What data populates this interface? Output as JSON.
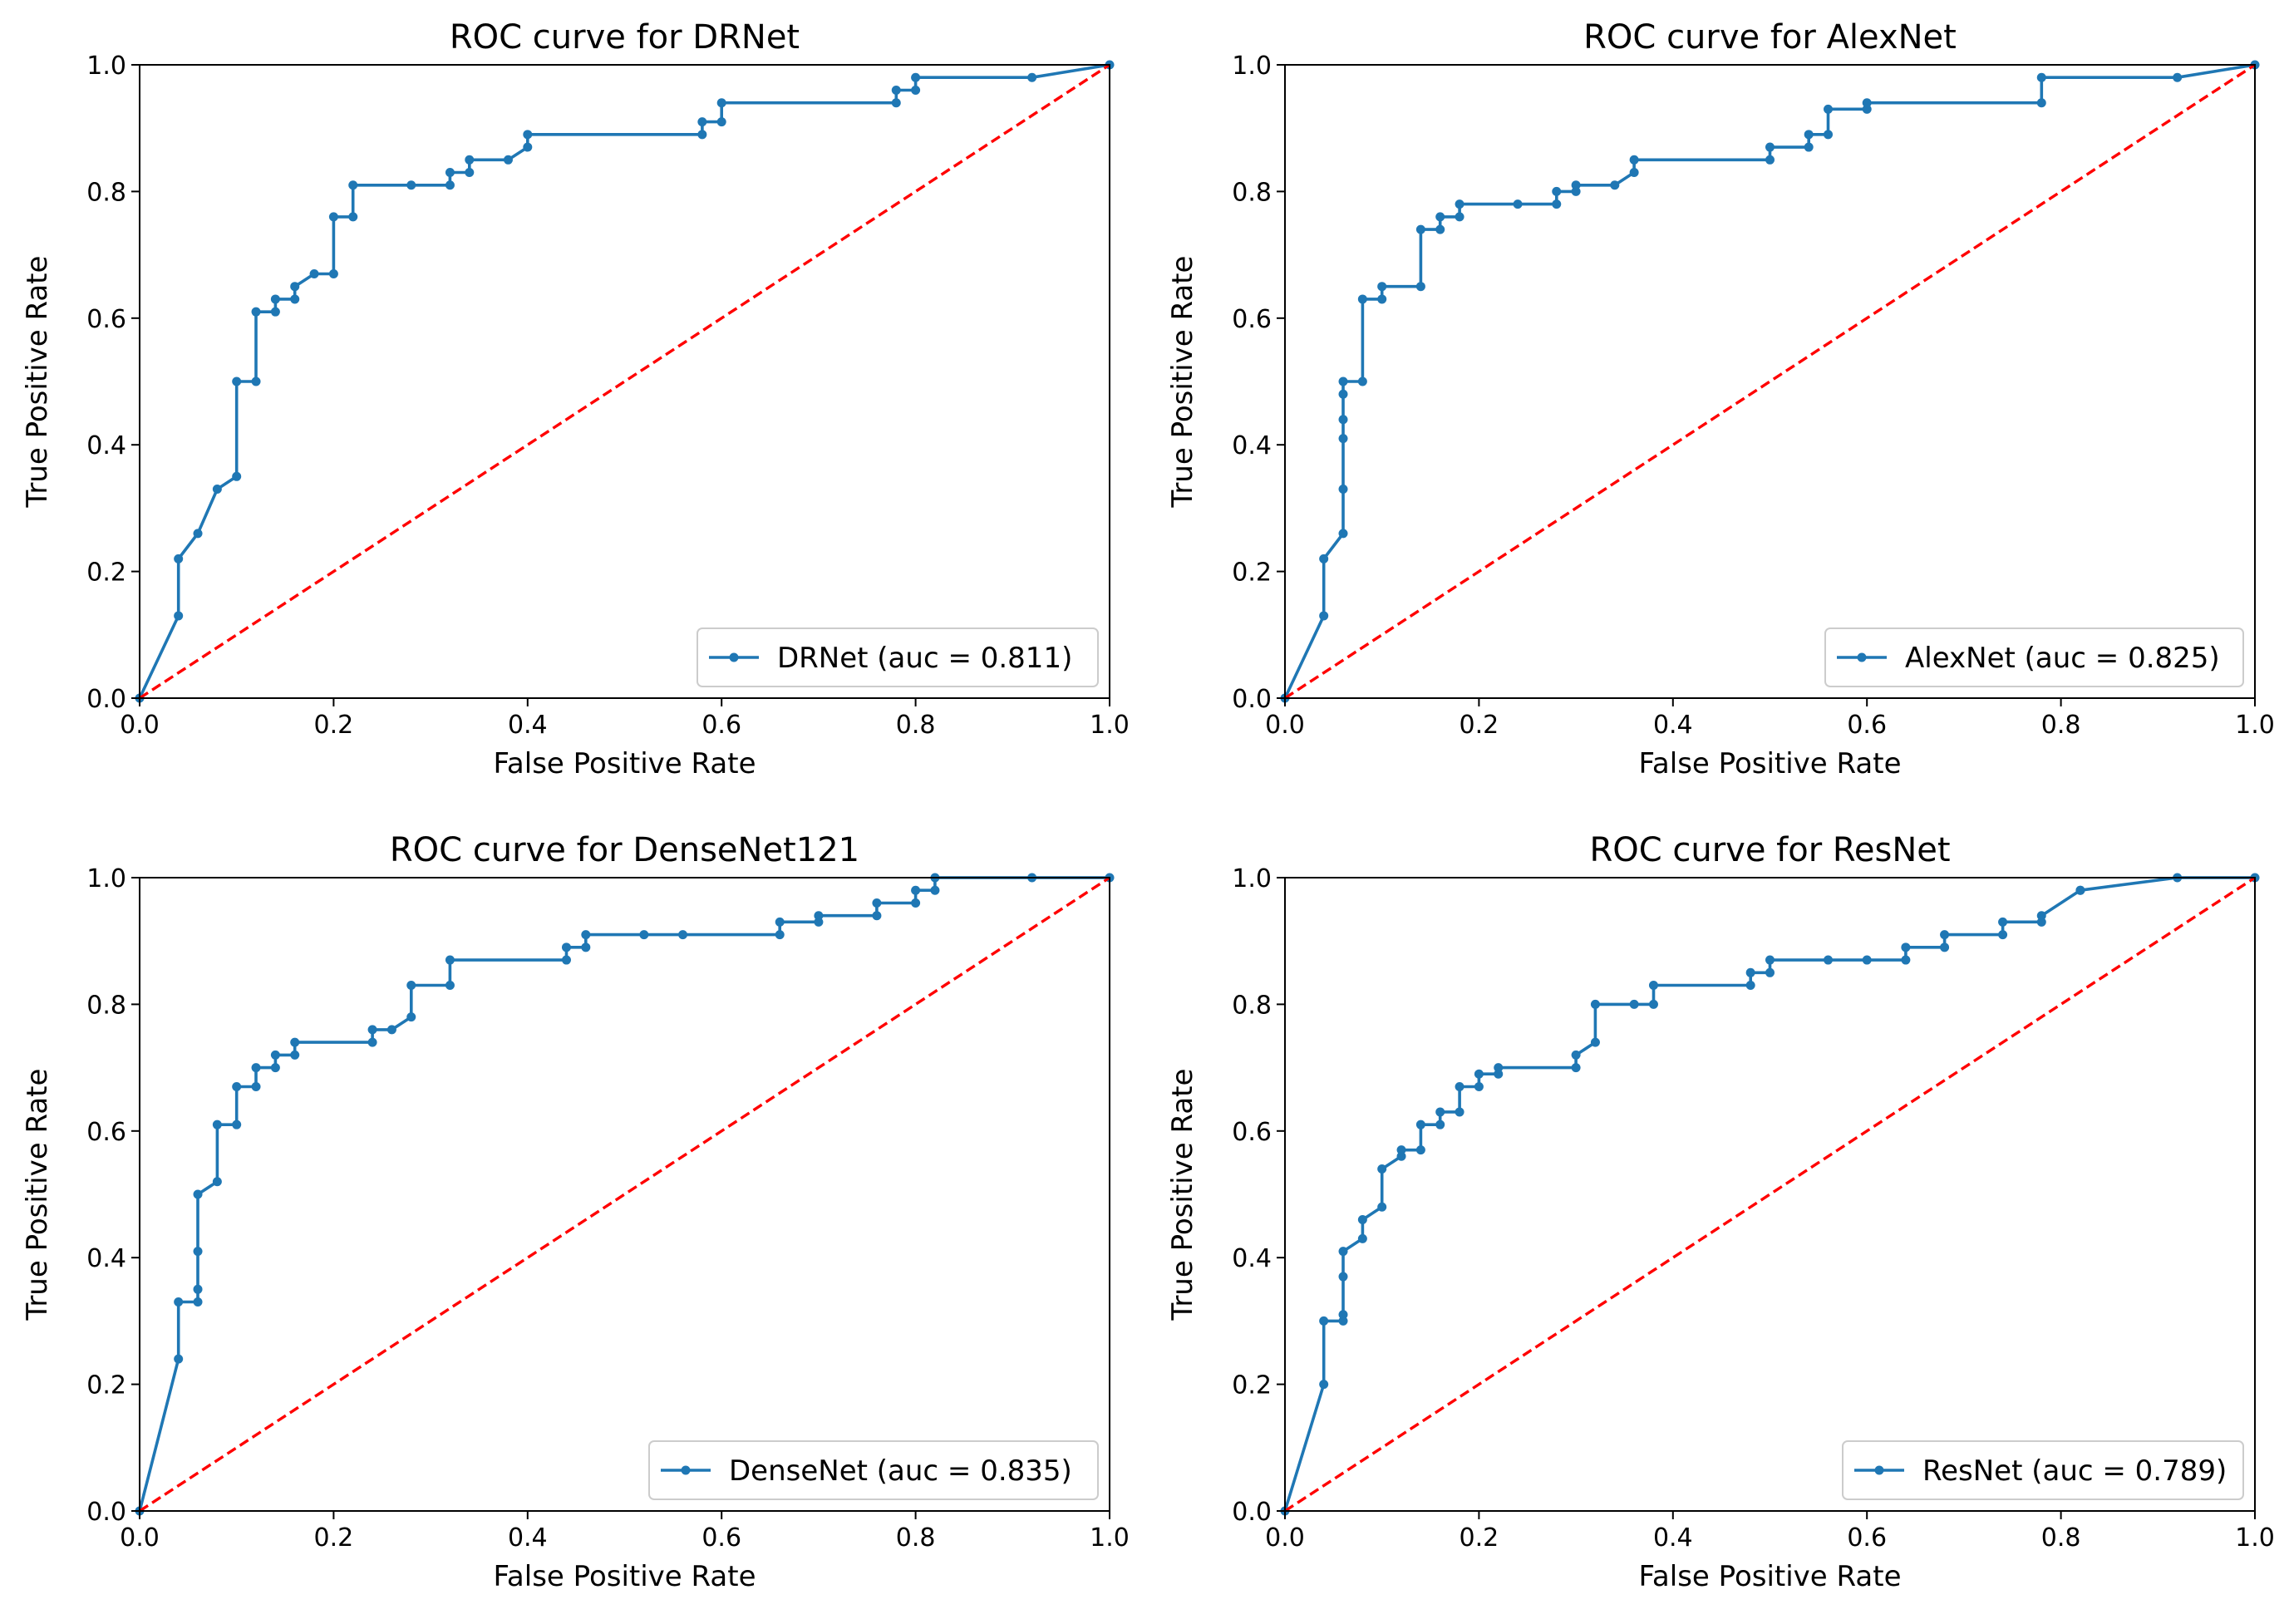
{
  "chart_data": [
    {
      "type": "line",
      "title": "ROC curve for DRNet",
      "xlabel": "False Positive Rate",
      "ylabel": "True Positive Rate",
      "xlim": [
        0.0,
        1.0
      ],
      "ylim": [
        0.0,
        1.0
      ],
      "xticks": [
        "0.0",
        "0.2",
        "0.4",
        "0.6",
        "0.8",
        "1.0"
      ],
      "yticks": [
        "0.0",
        "0.2",
        "0.4",
        "0.6",
        "0.8",
        "1.0"
      ],
      "legend_position": "lower right",
      "series": [
        {
          "name": "DRNet (auc = 0.811)",
          "color": "#1f77b4",
          "marker": "dot",
          "x": [
            0.0,
            0.04,
            0.04,
            0.06,
            0.08,
            0.1,
            0.1,
            0.12,
            0.12,
            0.14,
            0.14,
            0.16,
            0.16,
            0.18,
            0.2,
            0.2,
            0.22,
            0.22,
            0.28,
            0.32,
            0.32,
            0.34,
            0.34,
            0.38,
            0.4,
            0.4,
            0.58,
            0.58,
            0.6,
            0.6,
            0.78,
            0.78,
            0.8,
            0.8,
            0.92,
            1.0
          ],
          "y": [
            0.0,
            0.13,
            0.22,
            0.26,
            0.33,
            0.35,
            0.5,
            0.5,
            0.61,
            0.61,
            0.63,
            0.63,
            0.65,
            0.67,
            0.67,
            0.76,
            0.76,
            0.81,
            0.81,
            0.81,
            0.83,
            0.83,
            0.85,
            0.85,
            0.87,
            0.89,
            0.89,
            0.91,
            0.91,
            0.94,
            0.94,
            0.96,
            0.96,
            0.98,
            0.98,
            1.0
          ]
        },
        {
          "name": "chance",
          "color": "#ff0000",
          "style": "dashed",
          "x": [
            0.0,
            1.0
          ],
          "y": [
            0.0,
            1.0
          ]
        }
      ]
    },
    {
      "type": "line",
      "title": "ROC curve for AlexNet",
      "xlabel": "False Positive Rate",
      "ylabel": "True Positive Rate",
      "xlim": [
        0.0,
        1.0
      ],
      "ylim": [
        0.0,
        1.0
      ],
      "xticks": [
        "0.0",
        "0.2",
        "0.4",
        "0.6",
        "0.8",
        "1.0"
      ],
      "yticks": [
        "0.0",
        "0.2",
        "0.4",
        "0.6",
        "0.8",
        "1.0"
      ],
      "legend_position": "lower right",
      "series": [
        {
          "name": "AlexNet (auc = 0.825)",
          "color": "#1f77b4",
          "marker": "dot",
          "x": [
            0.0,
            0.04,
            0.04,
            0.06,
            0.06,
            0.06,
            0.06,
            0.06,
            0.06,
            0.08,
            0.08,
            0.1,
            0.1,
            0.14,
            0.14,
            0.16,
            0.16,
            0.18,
            0.18,
            0.24,
            0.28,
            0.28,
            0.3,
            0.3,
            0.34,
            0.36,
            0.36,
            0.5,
            0.5,
            0.54,
            0.54,
            0.56,
            0.56,
            0.6,
            0.6,
            0.78,
            0.78,
            0.92,
            1.0
          ],
          "y": [
            0.0,
            0.13,
            0.22,
            0.26,
            0.33,
            0.41,
            0.44,
            0.48,
            0.5,
            0.5,
            0.63,
            0.63,
            0.65,
            0.65,
            0.74,
            0.74,
            0.76,
            0.76,
            0.78,
            0.78,
            0.78,
            0.8,
            0.8,
            0.81,
            0.81,
            0.83,
            0.85,
            0.85,
            0.87,
            0.87,
            0.89,
            0.89,
            0.93,
            0.93,
            0.94,
            0.94,
            0.98,
            0.98,
            1.0
          ]
        },
        {
          "name": "chance",
          "color": "#ff0000",
          "style": "dashed",
          "x": [
            0.0,
            1.0
          ],
          "y": [
            0.0,
            1.0
          ]
        }
      ]
    },
    {
      "type": "line",
      "title": "ROC curve for DenseNet121",
      "xlabel": "False Positive Rate",
      "ylabel": "True Positive Rate",
      "xlim": [
        0.0,
        1.0
      ],
      "ylim": [
        0.0,
        1.0
      ],
      "xticks": [
        "0.0",
        "0.2",
        "0.4",
        "0.6",
        "0.8",
        "1.0"
      ],
      "yticks": [
        "0.0",
        "0.2",
        "0.4",
        "0.6",
        "0.8",
        "1.0"
      ],
      "legend_position": "lower right",
      "series": [
        {
          "name": "DenseNet (auc = 0.835)",
          "color": "#1f77b4",
          "marker": "dot",
          "x": [
            0.0,
            0.04,
            0.04,
            0.06,
            0.06,
            0.06,
            0.06,
            0.08,
            0.08,
            0.1,
            0.1,
            0.12,
            0.12,
            0.14,
            0.14,
            0.16,
            0.16,
            0.24,
            0.24,
            0.26,
            0.28,
            0.28,
            0.32,
            0.32,
            0.44,
            0.44,
            0.46,
            0.46,
            0.52,
            0.56,
            0.66,
            0.66,
            0.7,
            0.7,
            0.76,
            0.76,
            0.8,
            0.8,
            0.82,
            0.82,
            0.92,
            1.0
          ],
          "y": [
            0.0,
            0.24,
            0.33,
            0.33,
            0.35,
            0.41,
            0.5,
            0.52,
            0.61,
            0.61,
            0.67,
            0.67,
            0.7,
            0.7,
            0.72,
            0.72,
            0.74,
            0.74,
            0.76,
            0.76,
            0.78,
            0.83,
            0.83,
            0.87,
            0.87,
            0.89,
            0.89,
            0.91,
            0.91,
            0.91,
            0.91,
            0.93,
            0.93,
            0.94,
            0.94,
            0.96,
            0.96,
            0.98,
            0.98,
            1.0,
            1.0,
            1.0
          ]
        },
        {
          "name": "chance",
          "color": "#ff0000",
          "style": "dashed",
          "x": [
            0.0,
            1.0
          ],
          "y": [
            0.0,
            1.0
          ]
        }
      ]
    },
    {
      "type": "line",
      "title": "ROC curve for ResNet",
      "xlabel": "False Positive Rate",
      "ylabel": "True Positive Rate",
      "xlim": [
        0.0,
        1.0
      ],
      "ylim": [
        0.0,
        1.0
      ],
      "xticks": [
        "0.0",
        "0.2",
        "0.4",
        "0.6",
        "0.8",
        "1.0"
      ],
      "yticks": [
        "0.0",
        "0.2",
        "0.4",
        "0.6",
        "0.8",
        "1.0"
      ],
      "legend_position": "lower right",
      "series": [
        {
          "name": "ResNet (auc = 0.789)",
          "color": "#1f77b4",
          "marker": "dot",
          "x": [
            0.0,
            0.04,
            0.04,
            0.06,
            0.06,
            0.06,
            0.06,
            0.08,
            0.08,
            0.1,
            0.1,
            0.12,
            0.12,
            0.14,
            0.14,
            0.16,
            0.16,
            0.18,
            0.18,
            0.2,
            0.2,
            0.22,
            0.22,
            0.3,
            0.3,
            0.32,
            0.32,
            0.36,
            0.38,
            0.38,
            0.48,
            0.48,
            0.5,
            0.5,
            0.56,
            0.6,
            0.64,
            0.64,
            0.68,
            0.68,
            0.74,
            0.74,
            0.78,
            0.78,
            0.82,
            0.82,
            0.92,
            1.0
          ],
          "y": [
            0.0,
            0.2,
            0.3,
            0.3,
            0.31,
            0.37,
            0.41,
            0.43,
            0.46,
            0.48,
            0.54,
            0.56,
            0.57,
            0.57,
            0.61,
            0.61,
            0.63,
            0.63,
            0.67,
            0.67,
            0.69,
            0.69,
            0.7,
            0.7,
            0.72,
            0.74,
            0.8,
            0.8,
            0.8,
            0.83,
            0.83,
            0.85,
            0.85,
            0.87,
            0.87,
            0.87,
            0.87,
            0.89,
            0.89,
            0.91,
            0.91,
            0.93,
            0.93,
            0.94,
            0.98,
            0.98,
            1.0,
            1.0
          ]
        },
        {
          "name": "chance",
          "color": "#ff0000",
          "style": "dashed",
          "x": [
            0.0,
            1.0
          ],
          "y": [
            0.0,
            1.0
          ]
        }
      ]
    }
  ]
}
